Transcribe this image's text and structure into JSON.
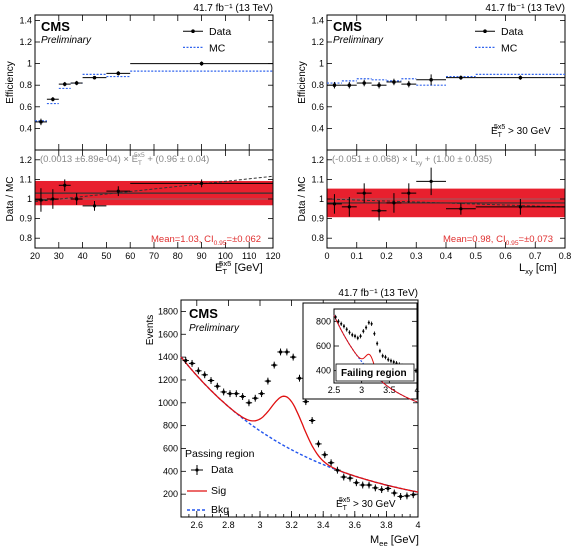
{
  "chart_data": [
    {
      "id": "eff_et",
      "type": "scatter",
      "lumi": "41.7 fb⁻¹ (13 TeV)",
      "cms": "CMS",
      "prelim": "Preliminary",
      "ylabel": "Efficiency",
      "ylim": [
        0.2,
        1.45
      ],
      "yticks": [
        0.4,
        0.6,
        0.8,
        1,
        1.2,
        1.4
      ],
      "xlim": [
        20,
        120
      ],
      "legend": {
        "data": "Data",
        "mc": "MC"
      },
      "data": [
        {
          "x": 22.5,
          "y": 0.46,
          "xerr": 2.5,
          "yerr": 0.03
        },
        {
          "x": 27.5,
          "y": 0.67,
          "xerr": 2.5,
          "yerr": 0.02
        },
        {
          "x": 32.5,
          "y": 0.81,
          "xerr": 2.5,
          "yerr": 0.02
        },
        {
          "x": 37.5,
          "y": 0.82,
          "xerr": 2.5,
          "yerr": 0.02
        },
        {
          "x": 45,
          "y": 0.87,
          "xerr": 5,
          "yerr": 0.015
        },
        {
          "x": 55,
          "y": 0.91,
          "xerr": 5,
          "yerr": 0.02
        },
        {
          "x": 90,
          "y": 1.0,
          "xerr": 30,
          "yerr": 0.02
        }
      ],
      "mc": [
        {
          "x": 22.5,
          "y": 0.47,
          "xerr": 2.5
        },
        {
          "x": 27.5,
          "y": 0.63,
          "xerr": 2.5
        },
        {
          "x": 32.5,
          "y": 0.77,
          "xerr": 2.5
        },
        {
          "x": 37.5,
          "y": 0.82,
          "xerr": 2.5
        },
        {
          "x": 45,
          "y": 0.9,
          "xerr": 5
        },
        {
          "x": 55,
          "y": 0.88,
          "xerr": 5
        },
        {
          "x": 90,
          "y": 0.93,
          "xerr": 30
        }
      ]
    },
    {
      "id": "ratio_et",
      "type": "scatter",
      "ylabel": "Data / MC",
      "xlabel": "E_T^5x5 [GeV]",
      "xlabel_main": "E",
      "xlabel_sub": "T",
      "xlabel_sup": "5x5",
      "xlabel_unit": " [GeV]",
      "xlim": [
        20,
        120
      ],
      "xticks": [
        20,
        30,
        40,
        50,
        60,
        70,
        80,
        90,
        100,
        110,
        120
      ],
      "ylim": [
        0.75,
        1.25
      ],
      "yticks": [
        0.8,
        0.9,
        1,
        1.1,
        1.2
      ],
      "fit_label": "(0.0013 ±6.89e-04) × E",
      "fit_label_sub": "T",
      "fit_label_sup": "5x5",
      "fit_label_rest": " + (0.96 ± 0.04)",
      "mean_label": "Mean=1.03, CI",
      "mean_sub": "0.95",
      "mean_rest": "=±0.062",
      "band": [
        0.968,
        1.092
      ],
      "mean": 1.03,
      "fit_line": [
        0.9865,
        1.116
      ],
      "data": [
        {
          "x": 22.5,
          "y": 0.995,
          "xerr": 2.5,
          "yerr": 0.06
        },
        {
          "x": 27.5,
          "y": 1.0,
          "xerr": 2.5,
          "yerr": 0.05
        },
        {
          "x": 32.5,
          "y": 1.07,
          "xerr": 2.5,
          "yerr": 0.03
        },
        {
          "x": 37.5,
          "y": 1.0,
          "xerr": 2.5,
          "yerr": 0.03
        },
        {
          "x": 45,
          "y": 0.965,
          "xerr": 5,
          "yerr": 0.025
        },
        {
          "x": 55,
          "y": 1.04,
          "xerr": 5,
          "yerr": 0.025
        },
        {
          "x": 90,
          "y": 1.08,
          "xerr": 30,
          "yerr": 0.02
        }
      ]
    },
    {
      "id": "eff_lxy",
      "type": "scatter",
      "lumi": "41.7 fb⁻¹ (13 TeV)",
      "cms": "CMS",
      "prelim": "Preliminary",
      "ylabel": "Efficiency",
      "ylim": [
        0.2,
        1.45
      ],
      "yticks": [
        0.4,
        0.6,
        0.8,
        1,
        1.2,
        1.4
      ],
      "xlim": [
        0,
        0.8
      ],
      "legend": {
        "data": "Data",
        "mc": "MC"
      },
      "cut_main": "E",
      "cut_sub": "T",
      "cut_sup": "5x5",
      "cut_rest": " > 30 GeV",
      "data": [
        {
          "x": 0.025,
          "y": 0.8,
          "xerr": 0.025,
          "yerr": 0.03
        },
        {
          "x": 0.075,
          "y": 0.8,
          "xerr": 0.025,
          "yerr": 0.03
        },
        {
          "x": 0.125,
          "y": 0.82,
          "xerr": 0.025,
          "yerr": 0.03
        },
        {
          "x": 0.175,
          "y": 0.8,
          "xerr": 0.025,
          "yerr": 0.03
        },
        {
          "x": 0.225,
          "y": 0.83,
          "xerr": 0.025,
          "yerr": 0.03
        },
        {
          "x": 0.275,
          "y": 0.81,
          "xerr": 0.025,
          "yerr": 0.03
        },
        {
          "x": 0.35,
          "y": 0.85,
          "xerr": 0.05,
          "yerr": 0.05
        },
        {
          "x": 0.45,
          "y": 0.87,
          "xerr": 0.05,
          "yerr": 0.02
        },
        {
          "x": 0.65,
          "y": 0.87,
          "xerr": 0.15,
          "yerr": 0.02
        }
      ],
      "mc": [
        {
          "x": 0.025,
          "y": 0.82,
          "xerr": 0.025
        },
        {
          "x": 0.075,
          "y": 0.84,
          "xerr": 0.025
        },
        {
          "x": 0.125,
          "y": 0.86,
          "xerr": 0.025
        },
        {
          "x": 0.175,
          "y": 0.85,
          "xerr": 0.025
        },
        {
          "x": 0.225,
          "y": 0.84,
          "xerr": 0.025
        },
        {
          "x": 0.275,
          "y": 0.86,
          "xerr": 0.025
        },
        {
          "x": 0.35,
          "y": 0.8,
          "xerr": 0.05
        },
        {
          "x": 0.45,
          "y": 0.88,
          "xerr": 0.05
        },
        {
          "x": 0.65,
          "y": 0.9,
          "xerr": 0.15
        }
      ]
    },
    {
      "id": "ratio_lxy",
      "type": "scatter",
      "ylabel": "Data / MC",
      "xlabel_main": "L",
      "xlabel_sub": "xy",
      "xlabel_unit": " [cm]",
      "xlim": [
        0,
        0.8
      ],
      "xticks": [
        0,
        0.1,
        0.2,
        0.3,
        0.4,
        0.5,
        0.6,
        0.7,
        0.8
      ],
      "ylim": [
        0.75,
        1.25
      ],
      "yticks": [
        0.8,
        0.9,
        1,
        1.1,
        1.2
      ],
      "fit_label": "(-0.051 ± 0.068) × L",
      "fit_label_sub": "xy",
      "fit_label_rest": " + (1.00 ± 0.035)",
      "mean_label": "Mean=0.98, CI",
      "mean_sub": "0.95",
      "mean_rest": "=±0.073",
      "band": [
        0.907,
        1.053
      ],
      "mean": 0.98,
      "fit_line": [
        1.0,
        0.959
      ],
      "data": [
        {
          "x": 0.025,
          "y": 0.975,
          "xerr": 0.025,
          "yerr": 0.05
        },
        {
          "x": 0.075,
          "y": 0.96,
          "xerr": 0.025,
          "yerr": 0.05
        },
        {
          "x": 0.125,
          "y": 1.03,
          "xerr": 0.025,
          "yerr": 0.05
        },
        {
          "x": 0.175,
          "y": 0.94,
          "xerr": 0.025,
          "yerr": 0.05
        },
        {
          "x": 0.225,
          "y": 0.98,
          "xerr": 0.025,
          "yerr": 0.05
        },
        {
          "x": 0.275,
          "y": 1.03,
          "xerr": 0.025,
          "yerr": 0.05
        },
        {
          "x": 0.35,
          "y": 1.09,
          "xerr": 0.05,
          "yerr": 0.07
        },
        {
          "x": 0.45,
          "y": 0.95,
          "xerr": 0.05,
          "yerr": 0.03
        },
        {
          "x": 0.65,
          "y": 0.96,
          "xerr": 0.15,
          "yerr": 0.04
        }
      ]
    },
    {
      "id": "mass_pass",
      "type": "line",
      "lumi": "41.7 fb⁻¹ (13 TeV)",
      "cms": "CMS",
      "prelim": "Preliminary",
      "ylabel": "Events",
      "xlabel_main": "M",
      "xlabel_sub": "ee",
      "xlabel_unit": " [GeV]",
      "xlim": [
        2.5,
        4.0
      ],
      "xticks": [
        2.6,
        2.8,
        3,
        3.2,
        3.4,
        3.6,
        3.8,
        4
      ],
      "ylim": [
        0,
        1900
      ],
      "yticks": [
        200,
        400,
        600,
        800,
        1000,
        1200,
        1400,
        1600,
        1800
      ],
      "region_label": "Passing region",
      "legend": {
        "data": "Data",
        "sig": "Sig",
        "bkg": "Bkg"
      },
      "cut_main": "E",
      "cut_sub": "T",
      "cut_sup": "5x5",
      "cut_rest": " > 30 GeV",
      "bkg": {
        "a": 1402,
        "b": 1.24
      },
      "sig": {
        "amp": 440,
        "mu": 3.17,
        "sigma": 0.1
      },
      "data_x": [
        2.53,
        2.57,
        2.61,
        2.65,
        2.69,
        2.73,
        2.77,
        2.81,
        2.85,
        2.89,
        2.93,
        2.97,
        3.01,
        3.05,
        3.09,
        3.13,
        3.17,
        3.21,
        3.25,
        3.29,
        3.33,
        3.37,
        3.41,
        3.45,
        3.49,
        3.53,
        3.57,
        3.61,
        3.65,
        3.69,
        3.73,
        3.77,
        3.81,
        3.85,
        3.89,
        3.93,
        3.97
      ],
      "data_y": [
        1370,
        1345,
        1280,
        1245,
        1195,
        1145,
        1095,
        1080,
        1080,
        1055,
        1000,
        1040,
        1080,
        1190,
        1330,
        1445,
        1445,
        1400,
        1215,
        1010,
        845,
        640,
        545,
        475,
        410,
        350,
        340,
        300,
        280,
        280,
        255,
        240,
        250,
        210,
        180,
        185,
        195
      ],
      "data_err": 30
    },
    {
      "id": "mass_fail",
      "type": "line",
      "title": "Failing region",
      "xlim": [
        2.5,
        4.0
      ],
      "xticks": [
        2.5,
        3,
        3.5,
        4
      ],
      "ylim": [
        300,
        900
      ],
      "yticks": [
        400,
        600,
        800
      ],
      "bkg": {
        "a": 850,
        "b": 1.17
      },
      "sig": {
        "amp": 130,
        "mu": 3.15,
        "sigma": 0.08
      },
      "data_x": [
        2.53,
        2.58,
        2.63,
        2.68,
        2.73,
        2.78,
        2.83,
        2.88,
        2.93,
        2.98,
        3.03,
        3.08,
        3.13,
        3.18,
        3.23,
        3.28,
        3.33,
        3.38,
        3.43,
        3.48,
        3.53,
        3.58,
        3.63,
        3.68,
        3.73,
        3.78,
        3.83,
        3.88,
        3.93,
        3.98
      ],
      "data_y": [
        835,
        800,
        780,
        760,
        735,
        710,
        690,
        680,
        665,
        680,
        720,
        750,
        790,
        780,
        700,
        620,
        560,
        520,
        510,
        490,
        480,
        470,
        460,
        450,
        440,
        430,
        420,
        415,
        410,
        400
      ],
      "data_err": 18
    }
  ]
}
